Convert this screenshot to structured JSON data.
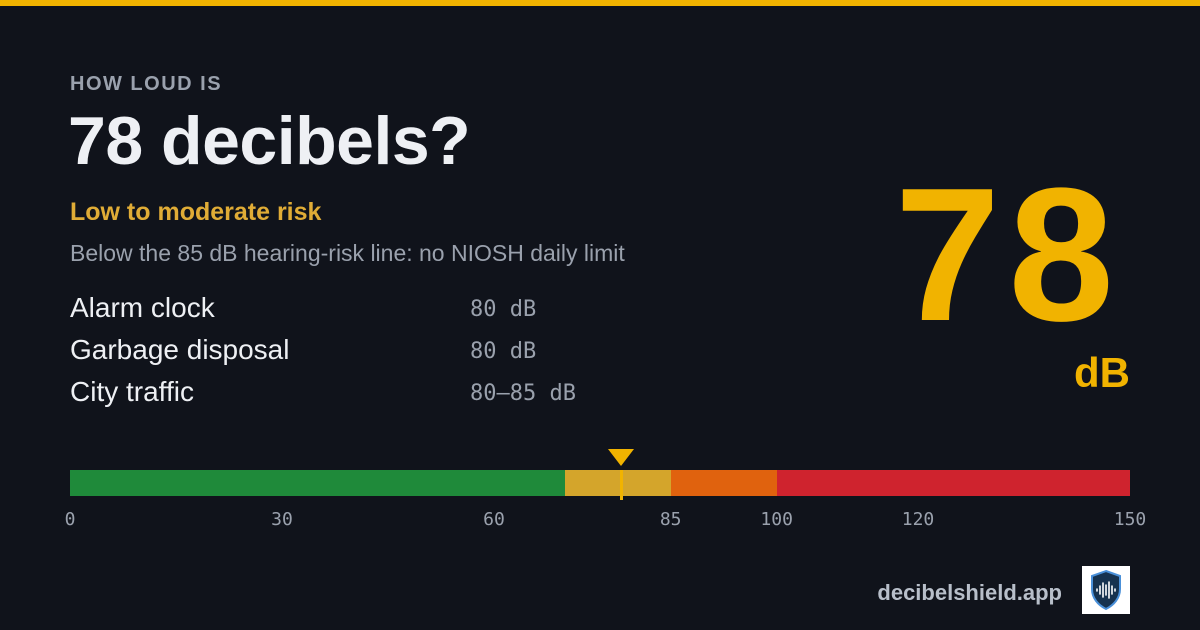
{
  "accent_color": "#f1b300",
  "header": {
    "kicker": "HOW LOUD IS",
    "title": "78 decibels?",
    "risk_label": "Low to moderate risk",
    "risk_color": "#e0ac36",
    "subtitle": "Below the 85 dB hearing-risk line: no NIOSH daily limit"
  },
  "examples": [
    {
      "name": "Alarm clock",
      "level": "80 dB"
    },
    {
      "name": "Garbage disposal",
      "level": "80 dB"
    },
    {
      "name": "City traffic",
      "level": "80–85 dB"
    }
  ],
  "reading": {
    "value": "78",
    "unit": "dB",
    "color": "#f1b300"
  },
  "scale": {
    "min": 0,
    "max": 150,
    "marker_value": 78,
    "segments": [
      {
        "from": 0,
        "to": 70,
        "color": "#1f8a3a"
      },
      {
        "from": 70,
        "to": 85,
        "color": "#d4a52b"
      },
      {
        "from": 85,
        "to": 100,
        "color": "#e0620e"
      },
      {
        "from": 100,
        "to": 150,
        "color": "#cf232e"
      }
    ],
    "ticks": [
      "0",
      "30",
      "60",
      "85",
      "100",
      "120",
      "150"
    ]
  },
  "footer": {
    "brand": "decibelshield.app",
    "logo_icon": "shield-soundwave-icon"
  }
}
